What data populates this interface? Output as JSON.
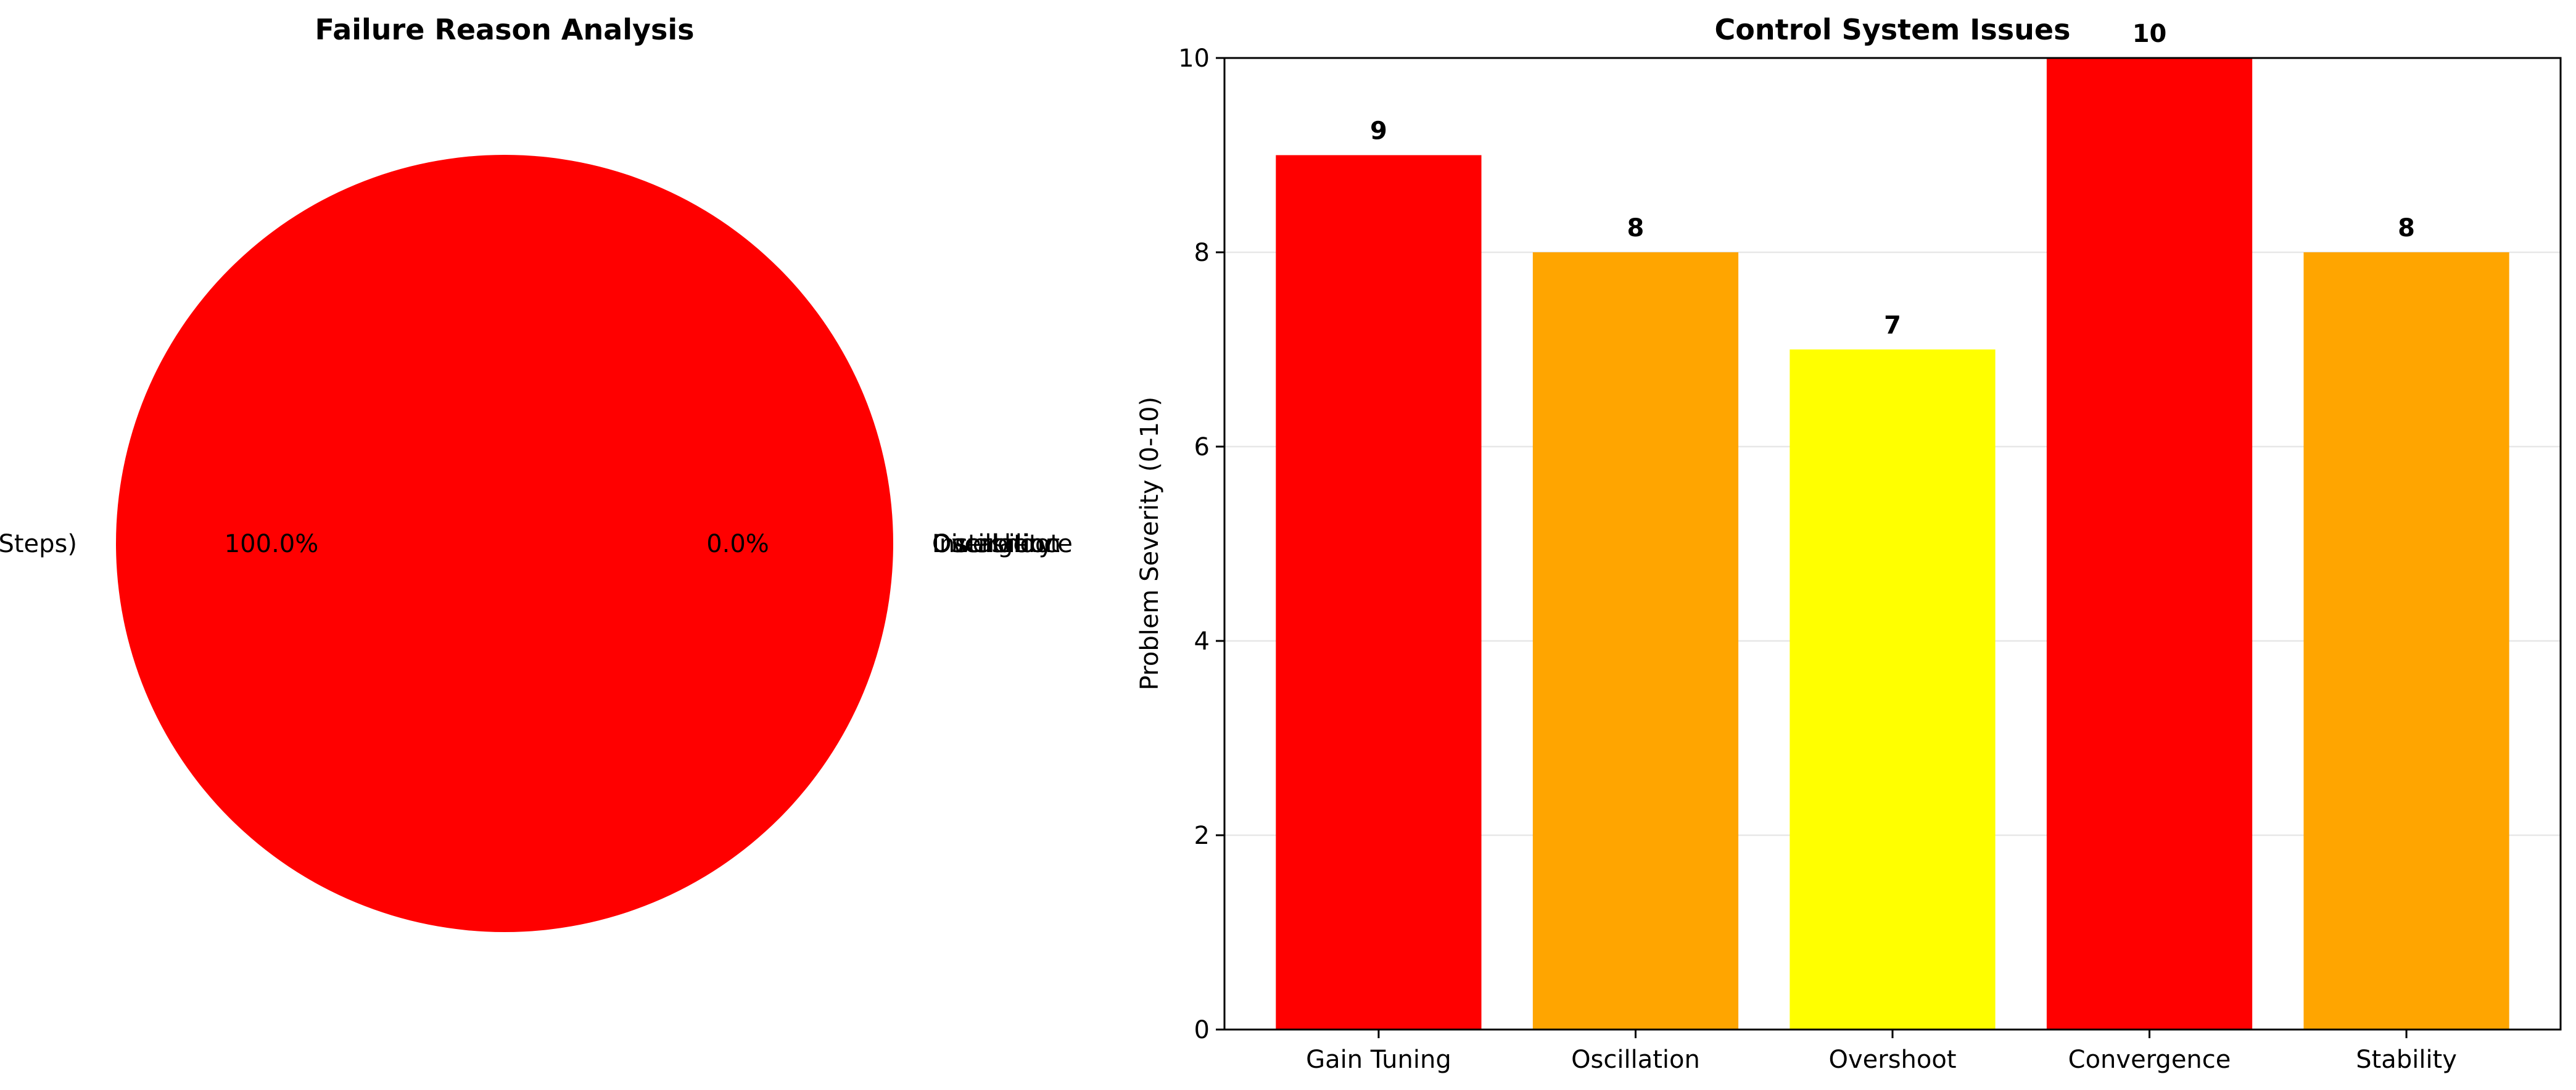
{
  "chart_data": [
    {
      "type": "pie",
      "title": "Failure Reason Analysis",
      "slices": [
        {
          "label": "Timeout (Max Steps)",
          "value": 100.0,
          "pct_label": "100.0%",
          "color": "#ff0000"
        },
        {
          "label": "Oscillation",
          "value": 0.0,
          "pct_label": "0.0%",
          "color": "#ffa500"
        },
        {
          "label": "Overshoot",
          "value": 0.0,
          "pct_label": "",
          "color": "#ffff00"
        },
        {
          "label": "Divergence",
          "value": 0.0,
          "pct_label": "",
          "color": "#ff0000"
        },
        {
          "label": "Instability",
          "value": 0.0,
          "pct_label": "",
          "color": "#ffa500"
        }
      ]
    },
    {
      "type": "bar",
      "title": "Control System Issues",
      "xlabel": "",
      "ylabel": "Problem Severity (0-10)",
      "ylim": [
        0,
        10
      ],
      "yticks": [
        0,
        2,
        4,
        6,
        8,
        10
      ],
      "grid": "y",
      "categories": [
        "Gain Tuning",
        "Oscillation",
        "Overshoot",
        "Convergence",
        "Stability"
      ],
      "values": [
        9,
        8,
        7,
        10,
        8
      ],
      "colors": [
        "#ff0000",
        "#ffa500",
        "#ffff00",
        "#ff0000",
        "#ffa500"
      ]
    }
  ]
}
